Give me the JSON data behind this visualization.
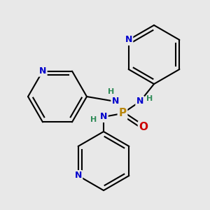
{
  "background_color": "#e8e8e8",
  "atom_colors": {
    "P": "#b8860b",
    "N": "#0000cc",
    "O": "#cc0000",
    "C": "#000000",
    "H": "#2e8b57"
  },
  "bond_color": "#000000",
  "bond_width": 1.5,
  "figsize": [
    3.0,
    3.0
  ],
  "dpi": 100
}
